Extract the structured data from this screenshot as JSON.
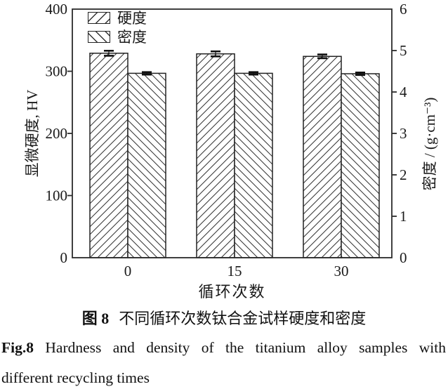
{
  "chart_data": {
    "type": "bar",
    "categories": [
      "0",
      "15",
      "30"
    ],
    "series": [
      {
        "name": "硬度",
        "axis": "left",
        "hatch": "forward",
        "values": [
          329,
          328,
          324
        ],
        "errors": [
          4,
          4,
          3
        ]
      },
      {
        "name": "密度",
        "axis": "right",
        "hatch": "backward",
        "values": [
          4.45,
          4.45,
          4.44
        ],
        "errors": [
          0.03,
          0.03,
          0.03
        ]
      }
    ],
    "left_axis": {
      "label": "显微硬度, HV",
      "min": 0,
      "max": 400,
      "ticks": [
        0,
        100,
        200,
        300,
        400
      ]
    },
    "right_axis": {
      "label": "密度 / (g·cm⁻³)",
      "min": 0,
      "max": 6,
      "ticks": [
        0,
        1,
        2,
        3,
        4,
        5,
        6
      ]
    },
    "xlabel": "循环次数",
    "title": "",
    "legend_position": "top-left",
    "grid": false,
    "bar_fill": "#ffffff",
    "line_color": "#2b2b2b"
  },
  "caption": {
    "cn_prefix": "图 8",
    "cn_text": "不同循环次数钛合金试样硬度和密度",
    "en_prefix": "Fig.8",
    "en_line1": "Hardness and density of the titanium alloy samples with",
    "en_line2": "different recycling times"
  }
}
